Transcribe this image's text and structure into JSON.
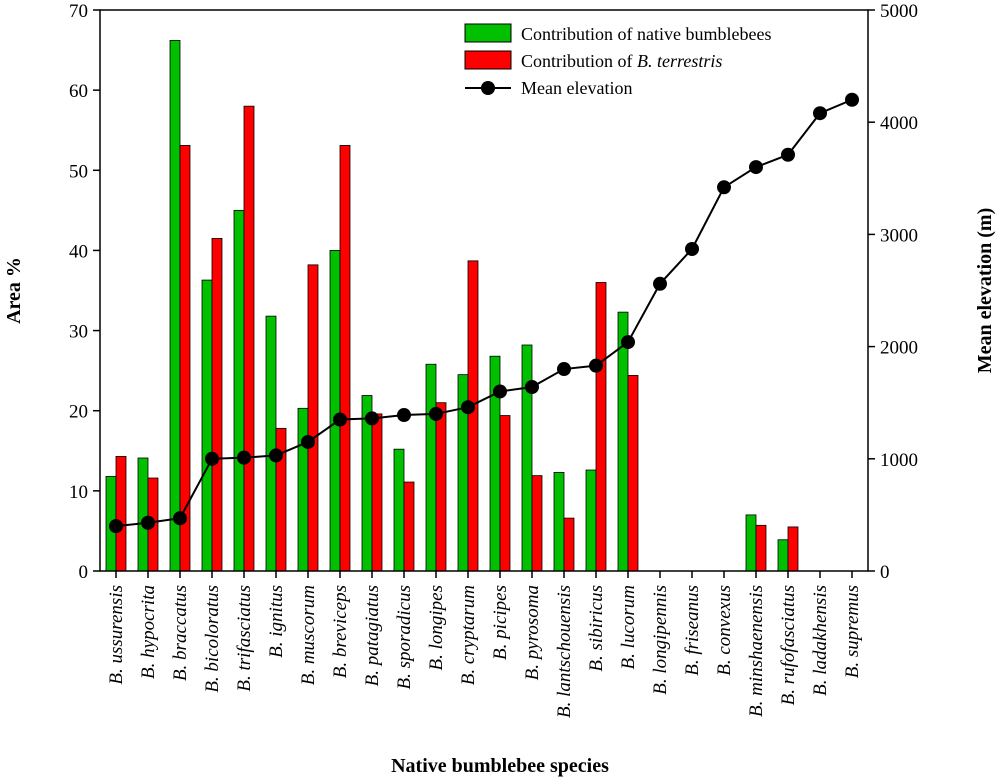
{
  "chart_data": {
    "type": "bar+line",
    "xlabel": "Native bumblebee species",
    "ylabel": "Area %",
    "y2label": "Mean elevation (m)",
    "ylim": [
      0,
      70
    ],
    "y2lim": [
      0,
      5000
    ],
    "yticks": [
      0,
      10,
      20,
      30,
      40,
      50,
      60,
      70
    ],
    "y2ticks": [
      0,
      1000,
      2000,
      3000,
      4000,
      5000
    ],
    "grid": false,
    "legend_position": "top-right",
    "categories": [
      "B. ussurensis",
      "B. hypocrita",
      "B. braccatus",
      "B. bicoloratus",
      "B. trifasciatus",
      "B. ignitus",
      "B. muscorum",
      "B. breviceps",
      "B. patagiatus",
      "B. sporadicus",
      "B. longipes",
      "B. cryptarum",
      "B. picipes",
      "B. pyrosoma",
      "B. lantschouensis",
      "B. sibiricus",
      "B. lucorum",
      "B. longipennis",
      "B. friseanus",
      "B. convexus",
      "B. minshaenensis",
      "B. rufofasciatus",
      "B. ladakhensis",
      "B. supremus"
    ],
    "series": [
      {
        "name": "Contribution of native bumblebees",
        "legend_prefix": "Contribution of native bumblebees",
        "legend_italic": "",
        "type": "bar",
        "axis": "left",
        "color": "#00c000",
        "values": [
          11.8,
          14.1,
          66.2,
          36.3,
          45.0,
          31.8,
          20.3,
          40.0,
          21.9,
          15.2,
          25.8,
          24.5,
          26.8,
          28.2,
          12.3,
          12.6,
          32.3,
          0,
          0,
          0,
          7.0,
          3.9,
          0,
          0
        ]
      },
      {
        "name": "Contribution of B. terrestris",
        "legend_prefix": "Contribution of ",
        "legend_italic": "B. terrestris",
        "type": "bar",
        "axis": "left",
        "color": "#ff0000",
        "values": [
          14.3,
          11.6,
          53.1,
          41.5,
          58.0,
          17.8,
          38.2,
          53.1,
          19.6,
          11.1,
          21.0,
          38.7,
          19.4,
          11.9,
          6.6,
          36.0,
          24.4,
          0,
          0,
          0,
          5.7,
          5.5,
          0,
          0
        ]
      },
      {
        "name": "Mean elevation",
        "legend_prefix": "Mean elevation",
        "legend_italic": "",
        "type": "line",
        "axis": "right",
        "color": "#000000",
        "values": [
          400,
          430,
          470,
          1000,
          1010,
          1030,
          1150,
          1350,
          1360,
          1390,
          1400,
          1460,
          1600,
          1640,
          1800,
          1830,
          2040,
          2560,
          2870,
          3420,
          3600,
          3710,
          4080,
          4200
        ]
      }
    ]
  }
}
